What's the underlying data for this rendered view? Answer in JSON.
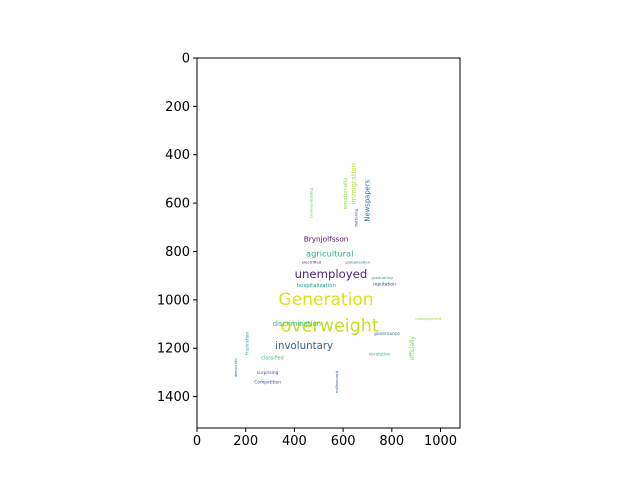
{
  "chart_data": {
    "type": "wordcloud",
    "title": "",
    "xlabel": "",
    "ylabel": "",
    "xlim": [
      0,
      1080
    ],
    "ylim": [
      1530,
      0
    ],
    "x_ticks": [
      0,
      200,
      400,
      600,
      800,
      1000
    ],
    "y_ticks": [
      0,
      200,
      400,
      600,
      800,
      1000,
      1200,
      1400
    ],
    "grid": false,
    "colormap": "viridis",
    "words": [
      {
        "text": "Generation",
        "x": 530,
        "y": 1000,
        "size": 70,
        "color": "#dce319",
        "rotate": 0
      },
      {
        "text": "overweight",
        "x": 545,
        "y": 1110,
        "size": 72,
        "color": "#c2df23",
        "rotate": 0
      },
      {
        "text": "unemployed",
        "x": 550,
        "y": 895,
        "size": 48,
        "color": "#482677",
        "rotate": 0
      },
      {
        "text": "involuntary",
        "x": 440,
        "y": 1190,
        "size": 42,
        "color": "#33638d",
        "rotate": 0
      },
      {
        "text": "agricultural",
        "x": 545,
        "y": 810,
        "size": 34,
        "color": "#29af7f",
        "rotate": 0
      },
      {
        "text": "Brynjolfsson",
        "x": 530,
        "y": 750,
        "size": 30,
        "color": "#481567",
        "rotate": 0
      },
      {
        "text": "discrimination",
        "x": 410,
        "y": 1100,
        "size": 28,
        "color": "#3cbb75",
        "rotate": 0
      },
      {
        "text": "Newspapers",
        "x": 700,
        "y": 590,
        "size": 28,
        "color": "#2d708e",
        "rotate": 90
      },
      {
        "text": "immigration",
        "x": 645,
        "y": 520,
        "size": 28,
        "color": "#b8de29",
        "rotate": 90
      },
      {
        "text": "officially",
        "x": 885,
        "y": 1200,
        "size": 24,
        "color": "#7ad151",
        "rotate": 90
      },
      {
        "text": "emotionally",
        "x": 610,
        "y": 560,
        "size": 22,
        "color": "#95d840",
        "rotate": 90
      },
      {
        "text": "hospitalization",
        "x": 490,
        "y": 940,
        "size": 22,
        "color": "#1f968b",
        "rotate": 0
      },
      {
        "text": "classified",
        "x": 310,
        "y": 1240,
        "size": 20,
        "color": "#3cbb75",
        "rotate": 0
      },
      {
        "text": "Competition",
        "x": 290,
        "y": 1340,
        "size": 18,
        "color": "#39568c",
        "rotate": 0
      },
      {
        "text": "surprising",
        "x": 290,
        "y": 1300,
        "size": 18,
        "color": "#404788",
        "rotate": 0
      },
      {
        "text": "frustration",
        "x": 205,
        "y": 1180,
        "size": 18,
        "color": "#1f968b",
        "rotate": 90
      },
      {
        "text": "governance",
        "x": 780,
        "y": 1140,
        "size": 18,
        "color": "#2d708e",
        "rotate": 0
      },
      {
        "text": "revolution",
        "x": 750,
        "y": 1225,
        "size": 18,
        "color": "#29af7f",
        "rotate": 0
      },
      {
        "text": "reputation",
        "x": 770,
        "y": 935,
        "size": 18,
        "color": "#453781",
        "rotate": 0
      },
      {
        "text": "graduating",
        "x": 760,
        "y": 910,
        "size": 16,
        "color": "#20a387",
        "rotate": 0
      },
      {
        "text": "globalization",
        "x": 660,
        "y": 845,
        "size": 16,
        "color": "#287d8e",
        "rotate": 0
      },
      {
        "text": "electrified",
        "x": 470,
        "y": 845,
        "size": 16,
        "color": "#482677",
        "rotate": 0
      },
      {
        "text": "flattering",
        "x": 655,
        "y": 660,
        "size": 16,
        "color": "#3f4788",
        "rotate": 90
      },
      {
        "text": "communicating",
        "x": 470,
        "y": 600,
        "size": 16,
        "color": "#55c667",
        "rotate": 90
      },
      {
        "text": "millisecond",
        "x": 575,
        "y": 1340,
        "size": 16,
        "color": "#39568c",
        "rotate": 90
      },
      {
        "text": "democratic",
        "x": 160,
        "y": 1280,
        "size": 14,
        "color": "#2d708e",
        "rotate": 90
      },
      {
        "text": "unemployment",
        "x": 950,
        "y": 1080,
        "size": 14,
        "color": "#95d840",
        "rotate": 0
      }
    ]
  }
}
